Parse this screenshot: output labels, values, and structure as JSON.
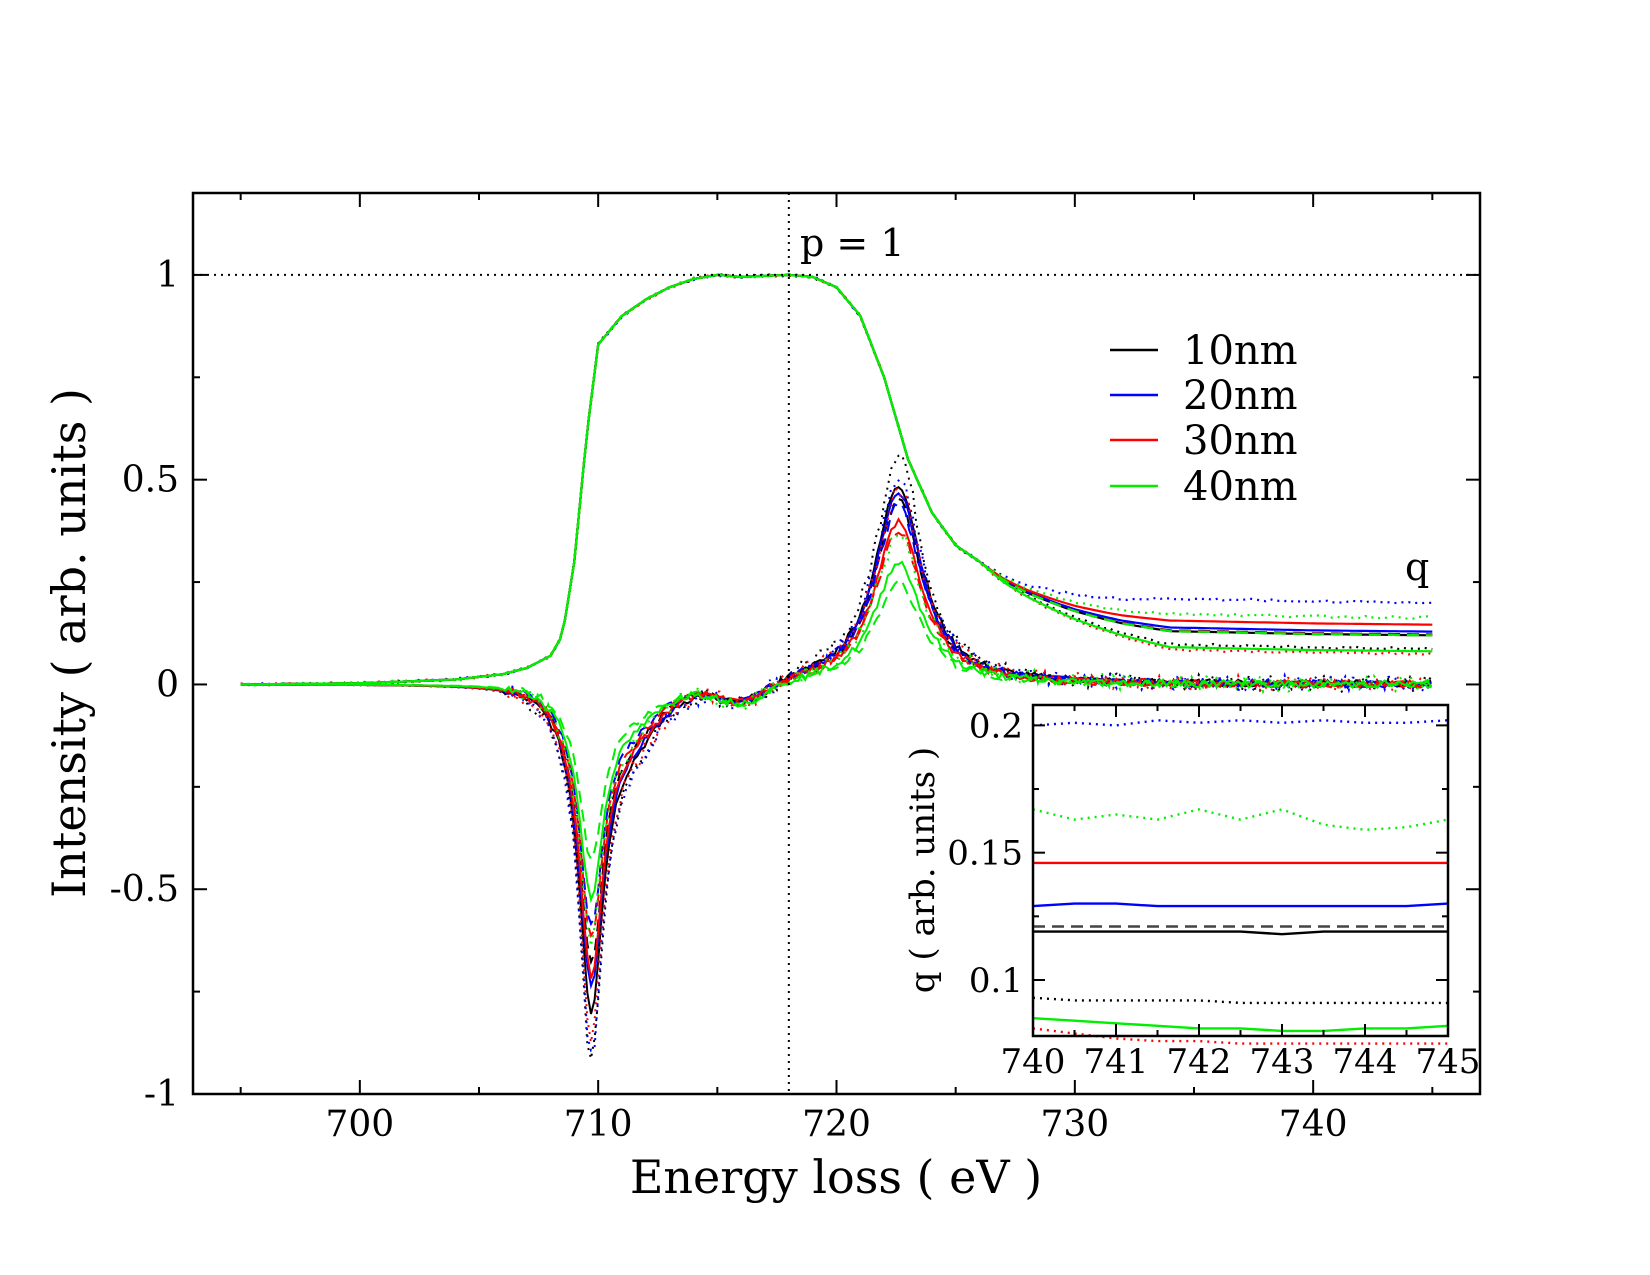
{
  "chart_data": [
    {
      "type": "line",
      "panel": "main",
      "title": "",
      "xlabel": "Energy loss ( eV )",
      "ylabel": "Intensity ( arb. units )",
      "xlim": [
        693,
        747
      ],
      "ylim": [
        -1,
        1.2
      ],
      "xticks": [
        700,
        710,
        720,
        730,
        740
      ],
      "xtick_labels": [
        "700",
        "710",
        "720",
        "730",
        "740"
      ],
      "yticks": [
        -1,
        -0.5,
        0,
        0.5,
        1
      ],
      "ytick_labels": [
        "-1",
        "-0.5",
        "0",
        "0.5",
        "1"
      ],
      "reference_lines": [
        {
          "orientation": "horizontal",
          "value": 1,
          "style": "dotted"
        },
        {
          "orientation": "vertical",
          "value": 718,
          "style": "dotted"
        }
      ],
      "annotations": [
        {
          "text": "p = 1",
          "x": 718.5,
          "y": 1.05
        },
        {
          "text": "q",
          "x": 744.7,
          "y": 0.27
        }
      ],
      "legend": {
        "position": "top-right",
        "entries": [
          {
            "label": "10nm",
            "color": "#000000"
          },
          {
            "label": "20nm",
            "color": "#0000ff"
          },
          {
            "label": "30nm",
            "color": "#ff0000"
          },
          {
            "label": "40nm",
            "color": "#00ee00"
          }
        ]
      },
      "x_sample": [
        695,
        700,
        704,
        706,
        707,
        708,
        708.5,
        709,
        709.5,
        710,
        711,
        712,
        713,
        714,
        715,
        716,
        717,
        718,
        719,
        720,
        721,
        722,
        723,
        724,
        725,
        726,
        727,
        728,
        730,
        732,
        735,
        740,
        745
      ],
      "edge_shape": [
        0,
        0.003,
        0.012,
        0.025,
        0.04,
        0.07,
        0.12,
        0.3,
        0.6,
        0.83,
        0.9,
        0.94,
        0.97,
        0.99,
        1.0,
        0.995,
        0.998,
        1.0,
        0.995,
        0.97,
        0.9,
        0.75,
        0.55,
        0.42,
        0.34,
        0.3,
        0.27,
        0.25,
        0.22,
        0.2,
        0.19,
        0.17,
        0.16
      ],
      "series": [
        {
          "name": "10nm",
          "color": "#000000",
          "q": [
            0.088,
            0.12,
            0.122
          ],
          "dichroic_min": [
            -0.97,
            -0.84,
            -0.72
          ],
          "dichroic_peak": [
            0.57,
            0.49,
            0.45
          ]
        },
        {
          "name": "20nm",
          "color": "#0000ff",
          "q": [
            0.2,
            0.129,
            0.121
          ],
          "dichroic_min": [
            -0.96,
            -0.78,
            -0.62
          ],
          "dichroic_peak": [
            0.5,
            0.47,
            0.44
          ]
        },
        {
          "name": "30nm",
          "color": "#ff0000",
          "q": [
            0.075,
            0.146,
            0.121
          ],
          "dichroic_min": [
            -0.9,
            -0.75,
            -0.65
          ],
          "dichroic_peak": [
            0.48,
            0.4,
            0.38
          ]
        },
        {
          "name": "40nm",
          "color": "#00ee00",
          "q": [
            0.163,
            0.081,
            0.12
          ],
          "dichroic_min": [
            -0.66,
            -0.55,
            -0.45
          ],
          "dichroic_peak": [
            0.37,
            0.3,
            0.25
          ]
        }
      ],
      "series_styles": [
        "dotted",
        "solid",
        "dashed"
      ]
    },
    {
      "type": "line",
      "panel": "inset",
      "title": "",
      "xlabel": "",
      "ylabel": "q ( arb. units )",
      "xlim": [
        740,
        745
      ],
      "ylim": [
        0.078,
        0.208
      ],
      "xticks": [
        740,
        741,
        742,
        743,
        744,
        745
      ],
      "xtick_labels": [
        "740",
        "741",
        "742",
        "743",
        "744",
        "745"
      ],
      "yticks": [
        0.1,
        0.15,
        0.2
      ],
      "ytick_labels": [
        "0.1",
        "0.15",
        "0.2"
      ],
      "x": [
        740,
        740.5,
        741,
        741.5,
        742,
        742.5,
        743,
        743.5,
        744,
        744.5,
        745
      ],
      "series": [
        {
          "name": "20nm dotted",
          "color": "#0000ff",
          "style": "dotted",
          "values": [
            0.2,
            0.201,
            0.2,
            0.202,
            0.201,
            0.202,
            0.201,
            0.202,
            0.201,
            0.201,
            0.202
          ]
        },
        {
          "name": "40nm dotted",
          "color": "#00ee00",
          "style": "dotted",
          "values": [
            0.167,
            0.163,
            0.165,
            0.163,
            0.167,
            0.163,
            0.167,
            0.161,
            0.159,
            0.16,
            0.163
          ]
        },
        {
          "name": "30nm solid",
          "color": "#ff0000",
          "style": "solid",
          "values": [
            0.146,
            0.146,
            0.146,
            0.146,
            0.146,
            0.146,
            0.146,
            0.146,
            0.146,
            0.146,
            0.146
          ]
        },
        {
          "name": "20nm solid",
          "color": "#0000ff",
          "style": "solid",
          "values": [
            0.129,
            0.13,
            0.13,
            0.129,
            0.129,
            0.129,
            0.129,
            0.129,
            0.129,
            0.129,
            0.13
          ]
        },
        {
          "name": "dashed",
          "color": "#444444",
          "style": "dashed",
          "values": [
            0.121,
            0.121,
            0.121,
            0.121,
            0.121,
            0.121,
            0.121,
            0.121,
            0.121,
            0.121,
            0.121
          ]
        },
        {
          "name": "10nm solid",
          "color": "#000000",
          "style": "solid",
          "values": [
            0.119,
            0.119,
            0.119,
            0.119,
            0.119,
            0.119,
            0.118,
            0.119,
            0.119,
            0.119,
            0.119
          ]
        },
        {
          "name": "10nm dotted",
          "color": "#000000",
          "style": "dotted",
          "values": [
            0.093,
            0.092,
            0.092,
            0.092,
            0.092,
            0.091,
            0.091,
            0.091,
            0.091,
            0.091,
            0.091
          ]
        },
        {
          "name": "40nm solid",
          "color": "#00ee00",
          "style": "solid",
          "values": [
            0.085,
            0.084,
            0.083,
            0.082,
            0.081,
            0.081,
            0.08,
            0.08,
            0.081,
            0.081,
            0.082
          ]
        },
        {
          "name": "30nm dotted",
          "color": "#ff0000",
          "style": "dotted",
          "values": [
            0.081,
            0.079,
            0.077,
            0.076,
            0.076,
            0.075,
            0.075,
            0.075,
            0.075,
            0.075,
            0.075
          ]
        }
      ]
    }
  ]
}
